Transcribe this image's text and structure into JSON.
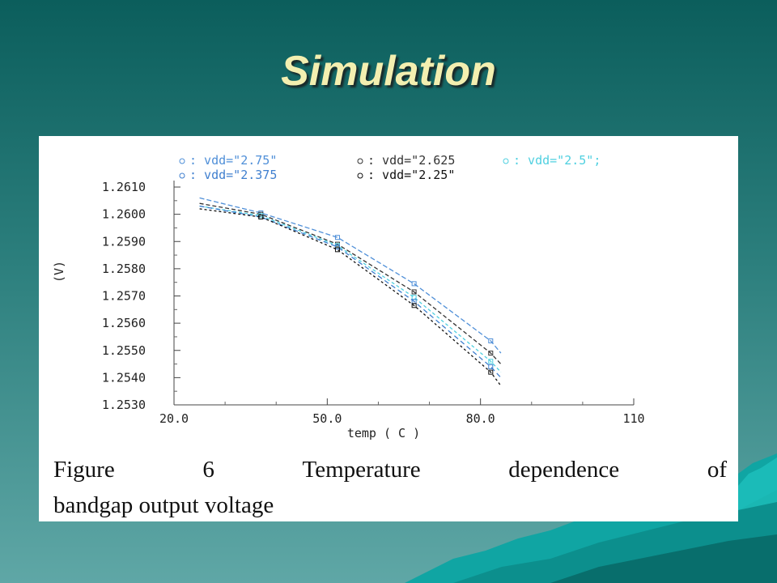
{
  "slide": {
    "title": "Simulation"
  },
  "caption": {
    "figure_label": "Figure",
    "figure_number": "6",
    "words": [
      "Temperature",
      "dependence",
      "of"
    ],
    "line2": "bandgap output voltage"
  },
  "chart_data": {
    "type": "line",
    "title": "",
    "xlabel": "temp ( C )",
    "ylabel": "(V)",
    "xlim": [
      20.0,
      110
    ],
    "ylim": [
      1.253,
      1.261
    ],
    "x_tick_labels": [
      "20.0",
      "50.0",
      "80.0",
      "110"
    ],
    "y_tick_labels": [
      "1.2530",
      "1.2540",
      "1.2550",
      "1.2560",
      "1.2570",
      "1.2580",
      "1.2590",
      "1.2600",
      "1.2610"
    ],
    "grid": false,
    "legend_position": "top",
    "series": [
      {
        "name": "vdd=\"2.75\"",
        "legend_label": "vdd=\"2.75\"",
        "color": "#4f8fd8",
        "x": [
          25,
          37,
          52,
          67,
          82,
          84
        ],
        "y": [
          1.2606,
          1.26005,
          1.25915,
          1.25745,
          1.25535,
          1.2549
        ]
      },
      {
        "name": "vdd=\"2.625\"",
        "legend_label": "vdd=\"2.625",
        "color": "#333333",
        "x": [
          25,
          37,
          52,
          67,
          82,
          84
        ],
        "y": [
          1.2604,
          1.26,
          1.2589,
          1.25715,
          1.2549,
          1.2545
        ]
      },
      {
        "name": "vdd=\"2.5\"",
        "legend_label": "vdd=\"2.5\";",
        "color": "#4fd0e0",
        "x": [
          25,
          37,
          52,
          67,
          82,
          84
        ],
        "y": [
          1.2603,
          1.25995,
          1.25885,
          1.25695,
          1.2546,
          1.2542
        ]
      },
      {
        "name": "vdd=\"2.375\"",
        "legend_label": "vdd=\"2.375",
        "color": "#3f7fcf",
        "x": [
          25,
          37,
          52,
          67,
          82,
          84
        ],
        "y": [
          1.2603,
          1.2599,
          1.2588,
          1.2568,
          1.2544,
          1.254
        ]
      },
      {
        "name": "vdd=\"2.25\"",
        "legend_label": "vdd=\"2.25\"",
        "color": "#111111",
        "x": [
          25,
          37,
          52,
          67,
          82,
          84
        ],
        "y": [
          1.2602,
          1.2599,
          1.2587,
          1.25665,
          1.2542,
          1.2537
        ]
      }
    ]
  }
}
